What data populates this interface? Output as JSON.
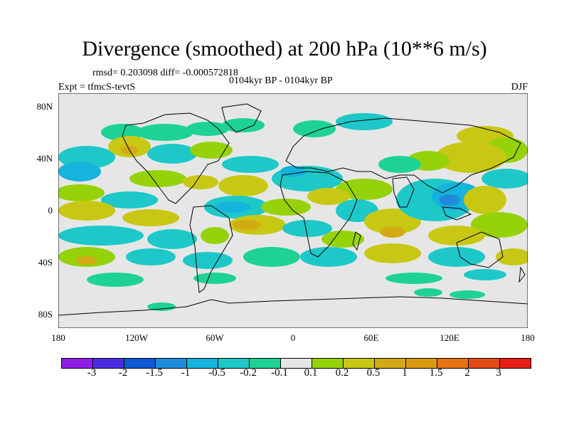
{
  "title": "Divergence (smoothed) at 200 hPa (10**6 m/s)",
  "stats": "rmsd= 0.203098 diff= -0.000572818",
  "case": "0104kyr BP - 0104kyr BP",
  "expt": "Expt = tfmcS-tevtS",
  "season": "DJF",
  "lat_labels": [
    "80N",
    "40N",
    "0",
    "40S",
    "80S"
  ],
  "lon_labels": [
    "180",
    "120W",
    "60W",
    "0",
    "60E",
    "120E",
    "180"
  ],
  "legend": {
    "colors": [
      "#8c1ee6",
      "#4b2de1",
      "#0f5ad2",
      "#1e8cdc",
      "#14b4dc",
      "#1ec8c8",
      "#1ed296",
      "#e6e6e6",
      "#96d20a",
      "#c8c814",
      "#d2aa14",
      "#dc9b0f",
      "#e67314",
      "#e64b14",
      "#e61e14"
    ],
    "labels": [
      "-3",
      "-2",
      "-1.5",
      "-1",
      "-0.5",
      "-0.2",
      "-0.1",
      "0.1",
      "0.2",
      "0.5",
      "1",
      "1.5",
      "2",
      "3"
    ]
  },
  "colors": {
    "background": "#e6e6e6",
    "coast": "#000000"
  }
}
